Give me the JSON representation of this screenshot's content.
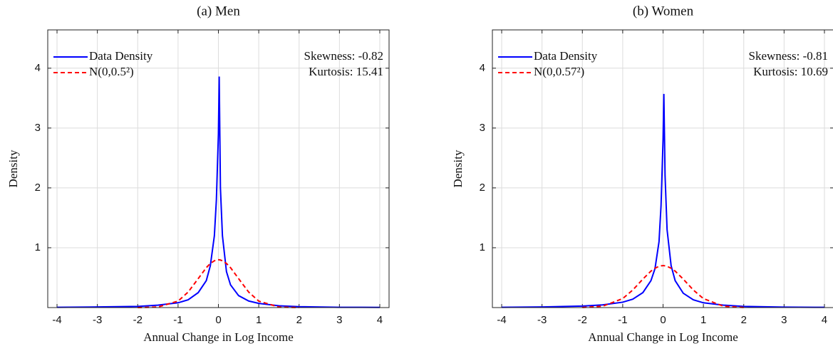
{
  "chart_data": [
    {
      "type": "line",
      "title": "(a) Men",
      "x_label": "Annual Change in Log Income",
      "y_label": "Density",
      "x": [
        -4,
        -3,
        -2,
        -1.5,
        -1,
        -0.75,
        -0.5,
        -0.3,
        -0.2,
        -0.1,
        -0.05,
        0,
        0.02,
        0.05,
        0.1,
        0.2,
        0.3,
        0.5,
        0.75,
        1,
        1.5,
        2,
        3,
        4
      ],
      "series": [
        {
          "name": "Data Density",
          "color": "#0000ff",
          "dash": "solid",
          "values": [
            0.005,
            0.01,
            0.02,
            0.04,
            0.08,
            0.13,
            0.25,
            0.45,
            0.7,
            1.2,
            1.8,
            2.9,
            3.86,
            2.0,
            1.2,
            0.6,
            0.38,
            0.2,
            0.11,
            0.07,
            0.03,
            0.015,
            0.005,
            0.003
          ]
        },
        {
          "name": "N(0,0.5²)",
          "color": "#ff0000",
          "dash": "dashed",
          "values": [
            null,
            null,
            0.0003,
            0.0089,
            0.108,
            0.259,
            0.484,
            0.667,
            0.737,
            0.782,
            0.794,
            0.798,
            0.798,
            0.794,
            0.782,
            0.737,
            0.667,
            0.484,
            0.259,
            0.108,
            0.0089,
            0.0003,
            null,
            null
          ]
        }
      ],
      "annotations": [
        "Skewness: -0.82",
        "Kurtosis: 15.41"
      ],
      "xlim": [
        -4.23,
        4.23
      ],
      "ylim": [
        0,
        4.64
      ],
      "xticks": [
        -4,
        -3,
        -2,
        -1,
        0,
        1,
        2,
        3,
        4
      ],
      "yticks": [
        1,
        2,
        3,
        4
      ],
      "grid": true,
      "legend": "upper left"
    },
    {
      "type": "line",
      "title": "(b) Women",
      "x_label": "Annual Change in Log Income",
      "y_label": "Density",
      "x": [
        -4,
        -3,
        -2,
        -1.5,
        -1,
        -0.75,
        -0.5,
        -0.3,
        -0.2,
        -0.1,
        -0.05,
        0,
        0.02,
        0.05,
        0.1,
        0.2,
        0.3,
        0.5,
        0.75,
        1,
        1.5,
        2,
        3,
        4
      ],
      "series": [
        {
          "name": "Data Density",
          "color": "#0000ff",
          "dash": "solid",
          "values": [
            0.005,
            0.01,
            0.025,
            0.045,
            0.09,
            0.14,
            0.25,
            0.45,
            0.65,
            1.1,
            1.7,
            2.8,
            3.57,
            2.2,
            1.3,
            0.7,
            0.45,
            0.24,
            0.13,
            0.08,
            0.04,
            0.02,
            0.008,
            0.004
          ]
        },
        {
          "name": "N(0,0.57²)",
          "color": "#ff0000",
          "dash": "dashed",
          "values": [
            null,
            null,
            0.0015,
            0.022,
            0.15,
            0.294,
            0.476,
            0.609,
            0.658,
            0.689,
            0.697,
            0.7,
            0.7,
            0.697,
            0.689,
            0.658,
            0.609,
            0.476,
            0.294,
            0.15,
            0.022,
            0.0015,
            null,
            null
          ]
        }
      ],
      "annotations": [
        "Skewness: -0.81",
        "Kurtosis: 10.69"
      ],
      "xlim": [
        -4.23,
        4.23
      ],
      "ylim": [
        0,
        4.64
      ],
      "xticks": [
        -4,
        -3,
        -2,
        -1,
        0,
        1,
        2,
        3,
        4
      ],
      "yticks": [
        1,
        2,
        3,
        4
      ],
      "grid": true,
      "legend": "upper left"
    }
  ]
}
